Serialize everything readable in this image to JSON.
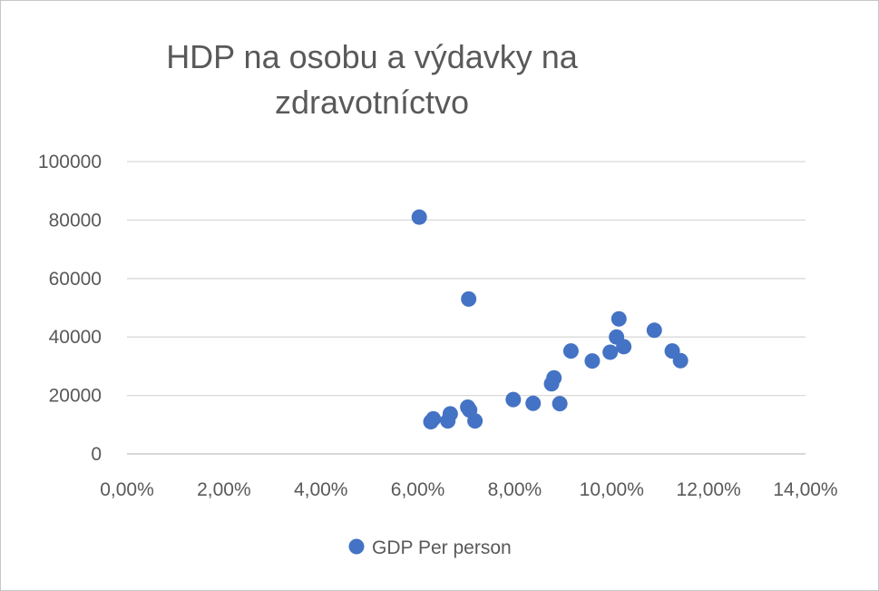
{
  "chart_data": {
    "type": "scatter",
    "title": "HDP na osobu  a výdavky na\nzdravotníctvo",
    "xlabel": "",
    "ylabel": "",
    "xlim": [
      0,
      0.14
    ],
    "ylim": [
      0,
      100000
    ],
    "x_ticks": [
      0,
      0.02,
      0.04,
      0.06,
      0.08,
      0.1,
      0.12,
      0.14
    ],
    "x_tick_labels": [
      "0,00%",
      "2,00%",
      "4,00%",
      "6,00%",
      "8,00%",
      "10,00%",
      "12,00%",
      "14,00%"
    ],
    "y_ticks": [
      0,
      20000,
      40000,
      60000,
      80000,
      100000
    ],
    "y_tick_labels": [
      "0",
      "20000",
      "40000",
      "60000",
      "80000",
      "100000"
    ],
    "grid": "horizontal",
    "legend_position": "bottom",
    "series": [
      {
        "name": "GDP Per person",
        "color": "#4472C4",
        "points": [
          [
            0.0603,
            81000
          ],
          [
            0.0705,
            53000
          ],
          [
            0.0627,
            11000
          ],
          [
            0.0632,
            12000
          ],
          [
            0.0662,
            11300
          ],
          [
            0.0667,
            13700
          ],
          [
            0.0703,
            16000
          ],
          [
            0.0707,
            15000
          ],
          [
            0.0718,
            11300
          ],
          [
            0.0797,
            18600
          ],
          [
            0.0838,
            17300
          ],
          [
            0.0876,
            24000
          ],
          [
            0.0881,
            26000
          ],
          [
            0.0893,
            17200
          ],
          [
            0.0916,
            35200
          ],
          [
            0.096,
            31800
          ],
          [
            0.0997,
            34800
          ],
          [
            0.101,
            40000
          ],
          [
            0.1015,
            46200
          ],
          [
            0.1025,
            36700
          ],
          [
            0.1088,
            42300
          ],
          [
            0.1125,
            35200
          ],
          [
            0.1142,
            31900
          ]
        ]
      }
    ]
  }
}
